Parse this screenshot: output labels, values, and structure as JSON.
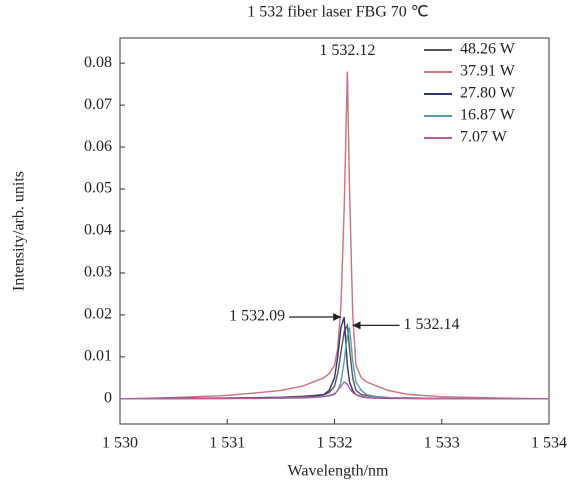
{
  "chart_data": {
    "type": "line",
    "title": "1 532 fiber laser FBG 70 ℃",
    "x_label": "Wavelength/nm",
    "y_label": "Intensity/arb. units",
    "x": [
      1530,
      1530.5,
      1531,
      1531.3,
      1531.5,
      1531.7,
      1531.8,
      1531.9,
      1531.95,
      1532.0,
      1532.03,
      1532.06,
      1532.09,
      1532.12,
      1532.14,
      1532.17,
      1532.2,
      1532.25,
      1532.3,
      1532.4,
      1532.5,
      1532.7,
      1533,
      1533.5,
      1534
    ],
    "series": [
      {
        "name": "48.26 W",
        "color": "#555555",
        "values": [
          0,
          0.0001,
          0.0002,
          0.0003,
          0.0004,
          0.0006,
          0.0008,
          0.001,
          0.0015,
          0.003,
          0.006,
          0.011,
          0.016,
          0.0175,
          0.012,
          0.005,
          0.002,
          0.001,
          0.0008,
          0.0005,
          0.0003,
          0.0002,
          0.0001,
          0,
          0
        ]
      },
      {
        "name": "37.91 W",
        "color": "#c9707a",
        "values": [
          0,
          0.0003,
          0.0008,
          0.0015,
          0.002,
          0.003,
          0.004,
          0.005,
          0.006,
          0.008,
          0.012,
          0.022,
          0.045,
          0.078,
          0.05,
          0.02,
          0.008,
          0.005,
          0.004,
          0.003,
          0.002,
          0.001,
          0.0005,
          0.0002,
          0
        ]
      },
      {
        "name": "27.80 W",
        "color": "#2a3570",
        "values": [
          0,
          0.0001,
          0.0001,
          0.0002,
          0.0002,
          0.0003,
          0.0005,
          0.001,
          0.002,
          0.005,
          0.01,
          0.017,
          0.0195,
          0.008,
          0.004,
          0.002,
          0.001,
          0.0005,
          0.0003,
          0.0002,
          0.0001,
          0.0001,
          0,
          0,
          0
        ]
      },
      {
        "name": "16.87 W",
        "color": "#5b9bb5",
        "values": [
          0,
          0,
          0.0001,
          0.0001,
          0.0002,
          0.0002,
          0.0003,
          0.0005,
          0.0007,
          0.001,
          0.002,
          0.004,
          0.009,
          0.015,
          0.017,
          0.009,
          0.004,
          0.002,
          0.001,
          0.0005,
          0.0003,
          0.0002,
          0.0001,
          0,
          0
        ]
      },
      {
        "name": "7.07 W",
        "color": "#b45fa0",
        "values": [
          0,
          0,
          0.0001,
          0.0001,
          0.0002,
          0.0003,
          0.0004,
          0.0006,
          0.0008,
          0.0012,
          0.002,
          0.003,
          0.004,
          0.0035,
          0.0025,
          0.0015,
          0.001,
          0.0006,
          0.0004,
          0.0003,
          0.0002,
          0.0001,
          0,
          0,
          0
        ]
      }
    ],
    "annotations": [
      {
        "text": "1 532.12",
        "x": 1532.12,
        "y": 0.078
      },
      {
        "text": "1 532.09",
        "x": 1532.09,
        "y": 0.0195
      },
      {
        "text": "1 532.14",
        "x": 1532.14,
        "y": 0.0175
      }
    ],
    "xlim": [
      1530,
      1534
    ],
    "xticks": [
      {
        "value": 1530,
        "label": "1 530"
      },
      {
        "value": 1531,
        "label": "1 531"
      },
      {
        "value": 1532,
        "label": "1 532"
      },
      {
        "value": 1533,
        "label": "1 533"
      },
      {
        "value": 1534,
        "label": "1 534"
      }
    ],
    "ylim": [
      -0.006,
      0.086
    ],
    "yticks": [
      0,
      0.01,
      0.02,
      0.03,
      0.04,
      0.05,
      0.06,
      0.07,
      0.08
    ],
    "grid": false,
    "legend": "upper right"
  }
}
